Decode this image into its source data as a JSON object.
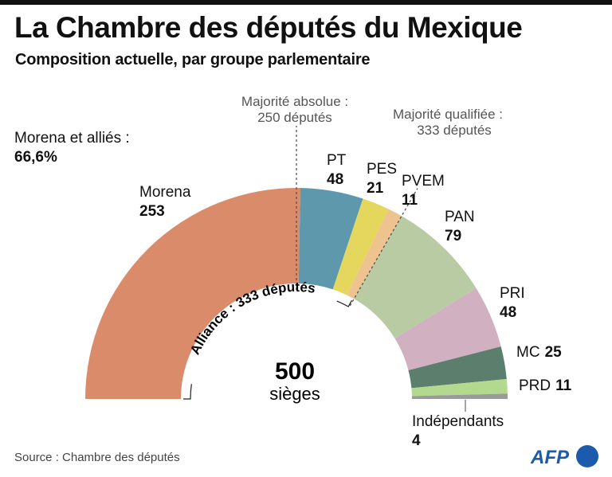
{
  "header": {
    "title": "La Chambre des députés du Mexique",
    "subtitle": "Composition actuelle, par groupe parlementaire"
  },
  "chart_data": {
    "type": "pie",
    "subtype": "semicircle-parliament",
    "title": "La Chambre des députés du Mexique",
    "subtitle": "Composition actuelle, par groupe parlementaire",
    "total_seats": 500,
    "center_label": {
      "value": "500",
      "unit": "sièges"
    },
    "series": [
      {
        "name": "Morena",
        "value": 253,
        "color": "#D98B6A",
        "alliance": true
      },
      {
        "name": "PT",
        "value": 48,
        "color": "#5E98AC",
        "alliance": true
      },
      {
        "name": "PES",
        "value": 21,
        "color": "#E5D65E",
        "alliance": true
      },
      {
        "name": "PVEM",
        "value": 11,
        "color": "#EEC38F",
        "alliance": true
      },
      {
        "name": "PAN",
        "value": 79,
        "color": "#B8CBA2",
        "alliance": false
      },
      {
        "name": "PRI",
        "value": 48,
        "color": "#D1B0C1",
        "alliance": false
      },
      {
        "name": "MC",
        "value": 25,
        "color": "#5C7F6D",
        "alliance": false
      },
      {
        "name": "PRD",
        "value": 11,
        "color": "#B3D98E",
        "alliance": false
      },
      {
        "name": "Indépendants",
        "value": 4,
        "color": "#9A9A9A",
        "alliance": false
      }
    ],
    "thresholds": [
      {
        "label_line1": "Majorité absolue :",
        "label_line2": "250 députés",
        "value": 250
      },
      {
        "label_line1": "Majorité qualifiée :",
        "label_line2": "333 députés",
        "value": 333
      }
    ],
    "alliance": {
      "label": "Alliance : 333 députés",
      "seats": 333,
      "share_label": "Morena et alliés :",
      "share_value": "66,6%"
    }
  },
  "footer": {
    "source": "Source : Chambre des députés",
    "logo": "AFP",
    "logo_color": "#1C5AAE"
  }
}
